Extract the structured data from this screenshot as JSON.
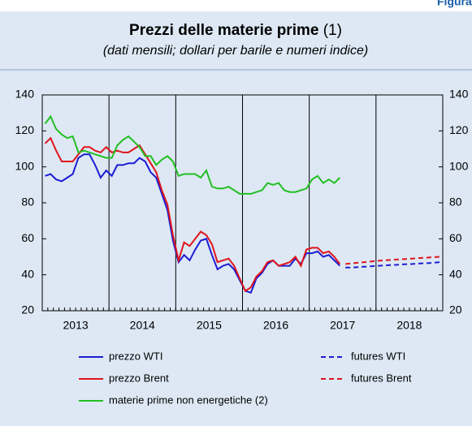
{
  "figure_label": "Figura",
  "chart_data": {
    "type": "line",
    "title": "Prezzi delle materie prime",
    "title_note": "(1)",
    "subtitle": "(dati mensili; dollari per barile e numeri indice)",
    "x": [
      2013.042,
      2013.125,
      2013.208,
      2013.292,
      2013.375,
      2013.458,
      2013.542,
      2013.625,
      2013.708,
      2013.792,
      2013.875,
      2013.958,
      2014.042,
      2014.125,
      2014.208,
      2014.292,
      2014.375,
      2014.458,
      2014.542,
      2014.625,
      2014.708,
      2014.792,
      2014.875,
      2014.958,
      2015.042,
      2015.125,
      2015.208,
      2015.292,
      2015.375,
      2015.458,
      2015.542,
      2015.625,
      2015.708,
      2015.792,
      2015.875,
      2015.958,
      2016.042,
      2016.125,
      2016.208,
      2016.292,
      2016.375,
      2016.458,
      2016.542,
      2016.625,
      2016.708,
      2016.792,
      2016.875,
      2016.958,
      2017.042,
      2017.125,
      2017.208,
      2017.292,
      2017.375,
      2017.458,
      2017.542,
      2017.625,
      2017.708,
      2017.792,
      2017.875,
      2017.958,
      2018.042,
      2018.125,
      2018.208,
      2018.292,
      2018.375,
      2018.458,
      2018.542,
      2018.625,
      2018.708,
      2018.792,
      2018.875,
      2018.958
    ],
    "xlim": [
      2013,
      2019
    ],
    "xticks": [
      2013,
      2014,
      2015,
      2016,
      2017,
      2018
    ],
    "ylim": [
      20,
      140
    ],
    "yticks": [
      20,
      40,
      60,
      80,
      100,
      120,
      140
    ],
    "series": [
      {
        "name": "prezzo WTI",
        "color": "#1c1cd4",
        "dashed": false,
        "values": [
          95,
          96,
          93,
          92,
          94,
          96,
          105,
          107,
          107,
          101,
          94,
          98,
          95,
          101,
          101,
          102,
          102,
          105,
          103,
          97,
          94,
          85,
          76,
          59,
          47,
          51,
          48,
          54,
          59,
          60,
          51,
          43,
          45,
          46,
          43,
          37,
          31,
          30,
          38,
          41,
          46,
          48,
          45,
          45,
          45,
          49,
          46,
          52,
          52,
          53,
          50,
          51,
          48,
          45,
          null,
          null,
          null,
          null,
          null,
          null,
          null,
          null,
          null,
          null,
          null,
          null,
          null,
          null,
          null,
          null,
          null,
          null
        ]
      },
      {
        "name": "prezzo Brent",
        "color": "#e0141c",
        "dashed": false,
        "values": [
          113,
          116,
          109,
          103,
          103,
          103,
          107,
          111,
          111,
          109,
          108,
          111,
          108,
          109,
          108,
          108,
          110,
          112,
          107,
          102,
          97,
          87,
          79,
          62,
          48,
          58,
          56,
          60,
          64,
          62,
          57,
          47,
          48,
          49,
          45,
          38,
          31,
          33,
          39,
          42,
          47,
          48,
          45,
          46,
          47,
          50,
          45,
          54,
          55,
          55,
          52,
          53,
          50,
          46,
          null,
          null,
          null,
          null,
          null,
          null,
          null,
          null,
          null,
          null,
          null,
          null,
          null,
          null,
          null,
          null,
          null,
          null
        ]
      },
      {
        "name": "materie prime non energetiche (2)",
        "color": "#22bf22",
        "dashed": false,
        "values": [
          124,
          128,
          121,
          118,
          116,
          117,
          108,
          109,
          108,
          107,
          106,
          105,
          105,
          112,
          115,
          117,
          114,
          111,
          106,
          106,
          101,
          104,
          106,
          103,
          95,
          96,
          96,
          96,
          94,
          98,
          89,
          88,
          88,
          89,
          87,
          85,
          85,
          85,
          86,
          87,
          91,
          90,
          91,
          87,
          86,
          86,
          87,
          88,
          93,
          95,
          91,
          93,
          91,
          94,
          null,
          null,
          null,
          null,
          null,
          null,
          null,
          null,
          null,
          null,
          null,
          null,
          null,
          null,
          null,
          null,
          null,
          null
        ]
      },
      {
        "name": "futures WTI",
        "color": "#1c1cd4",
        "dashed": true,
        "values": [
          null,
          null,
          null,
          null,
          null,
          null,
          null,
          null,
          null,
          null,
          null,
          null,
          null,
          null,
          null,
          null,
          null,
          null,
          null,
          null,
          null,
          null,
          null,
          null,
          null,
          null,
          null,
          null,
          null,
          null,
          null,
          null,
          null,
          null,
          null,
          null,
          null,
          null,
          null,
          null,
          null,
          null,
          null,
          null,
          null,
          null,
          null,
          null,
          null,
          null,
          null,
          null,
          null,
          null,
          44,
          44,
          44.2,
          44.4,
          44.6,
          44.8,
          45,
          45.2,
          45.4,
          45.5,
          45.7,
          45.9,
          46,
          46.2,
          46.4,
          46.5,
          46.7,
          47
        ]
      },
      {
        "name": "futures Brent",
        "color": "#e0141c",
        "dashed": true,
        "values": [
          null,
          null,
          null,
          null,
          null,
          null,
          null,
          null,
          null,
          null,
          null,
          null,
          null,
          null,
          null,
          null,
          null,
          null,
          null,
          null,
          null,
          null,
          null,
          null,
          null,
          null,
          null,
          null,
          null,
          null,
          null,
          null,
          null,
          null,
          null,
          null,
          null,
          null,
          null,
          null,
          null,
          null,
          null,
          null,
          null,
          null,
          null,
          null,
          null,
          null,
          null,
          null,
          null,
          null,
          46,
          46.3,
          46.6,
          46.9,
          47.2,
          47.5,
          47.8,
          48,
          48.2,
          48.4,
          48.6,
          48.8,
          49,
          49.2,
          49.4,
          49.6,
          49.8,
          50
        ]
      }
    ]
  }
}
